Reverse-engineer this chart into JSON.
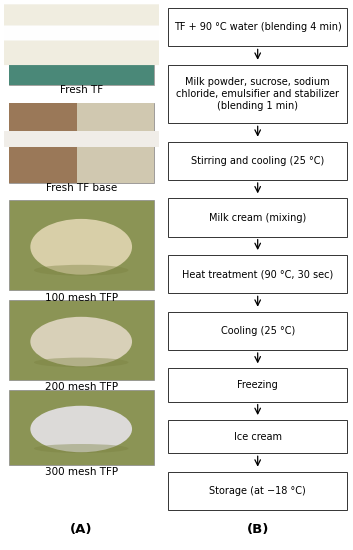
{
  "title_A": "(A)",
  "title_B": "(B)",
  "photo_labels": [
    "Fresh TF",
    "Fresh TF base",
    "100 mesh TFP",
    "200 mesh TFP",
    "300 mesh TFP"
  ],
  "flowchart_steps": [
    "TF + 90 °C water (blending 4 min)",
    "Milk powder, sucrose, sodium\nchloride, emulsifier and stabilizer\n(blending 1 min)",
    "Stirring and cooling (25 °C)",
    "Milk cream (mixing)",
    "Heat treatment (90 °C, 30 sec)",
    "Cooling (25 °C)",
    "Freezing",
    "Ice cream",
    "Storage (at −18 °C)"
  ],
  "box_color": "white",
  "box_edge_color": "#333333",
  "arrow_color": "black",
  "bg_color": "white",
  "font_size_labels": 7.5,
  "font_size_flow": 7.0,
  "font_size_titles": 9.5,
  "photo_bg_colors": [
    "#c8d0b8",
    "#b0a090",
    "#8b9455",
    "#8b9455",
    "#8b9455"
  ],
  "photo_content_colors": [
    "#f0ede0",
    "#c8b898",
    "#d8cfa8",
    "#d8d0b8",
    "#dcdad8"
  ],
  "photo_left_colors": [
    "#c8d0b8",
    "#9a7858",
    "#8b9455",
    "#8b9455",
    "#8b9455"
  ],
  "photo_right_colors": [
    "#f0ede0",
    "#d0c8b0",
    "#8b9455",
    "#8b9455",
    "#8b9455"
  ]
}
